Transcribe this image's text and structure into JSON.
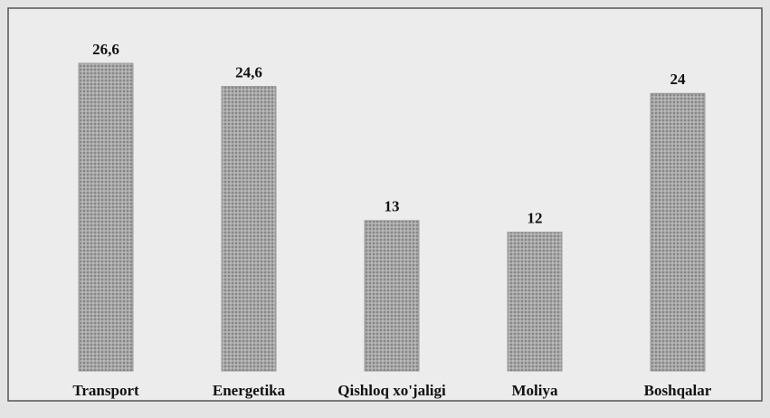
{
  "chart_data": {
    "type": "bar",
    "categories": [
      "Transport",
      "Energetika",
      "Qishloq xo'jaligi",
      "Moliya",
      "Boshqalar"
    ],
    "values": [
      26.6,
      24.6,
      13,
      12,
      24
    ],
    "value_labels": [
      "26,6",
      "24,6",
      "13",
      "12",
      "24"
    ],
    "color": "#9a9a9a"
  }
}
